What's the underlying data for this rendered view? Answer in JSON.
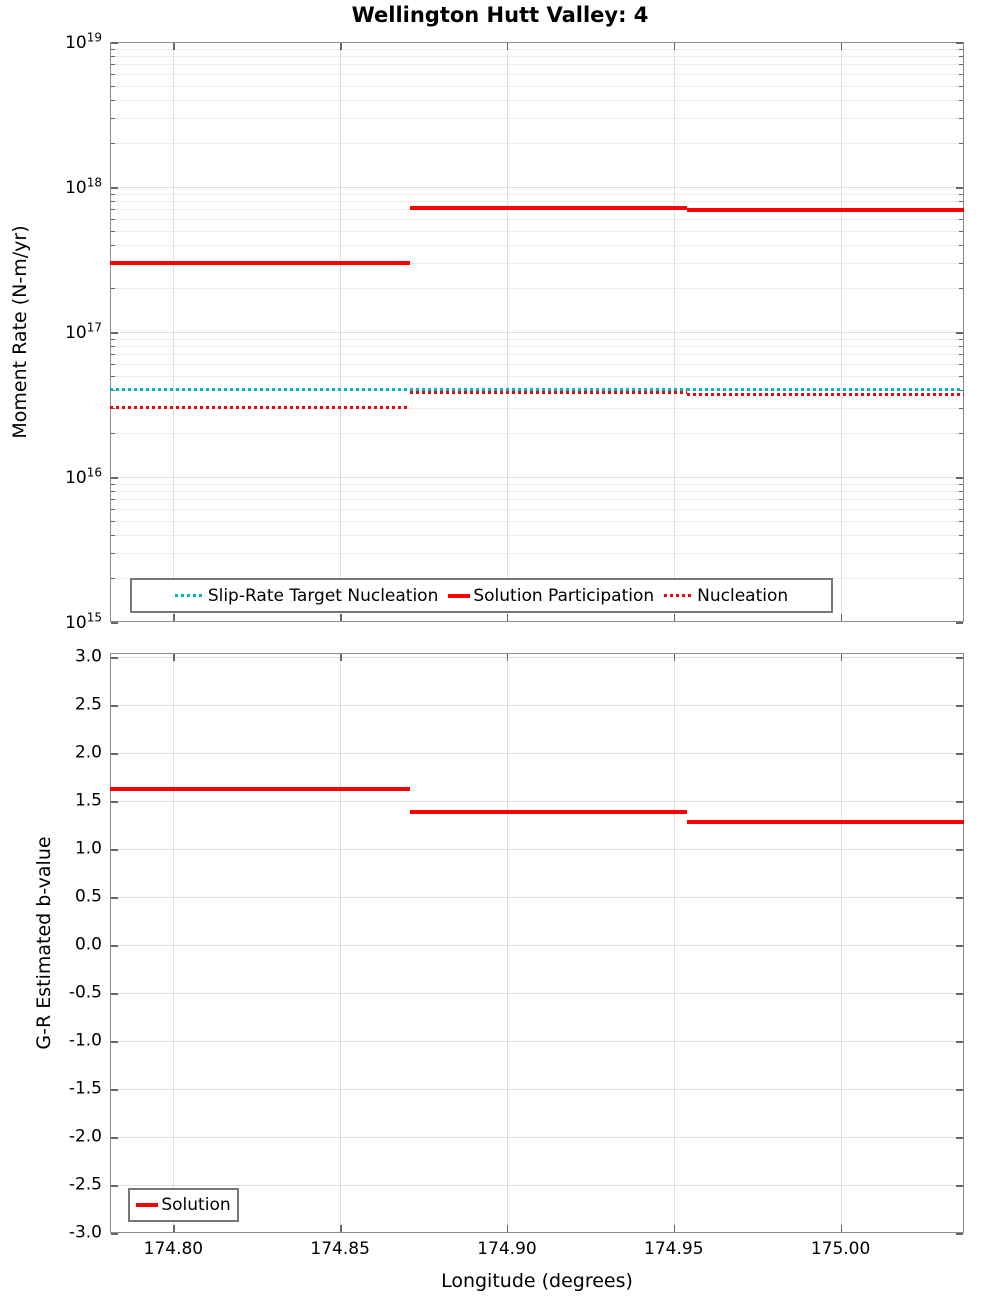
{
  "title": "Wellington Hutt Valley: 4",
  "colors": {
    "solution_red": "#ff0000",
    "target_teal": "#00b7c8",
    "grid_major": "#dfdfdf",
    "grid_minor": "#ececec",
    "spine_gray": "#8c8c8c"
  },
  "top_chart": {
    "ylabel": "Moment Rate (N-m/yr)",
    "legend_labels": [
      "Slip-Rate Target Nucleation",
      "Solution Participation",
      "Nucleation"
    ]
  },
  "bottom_chart": {
    "ylabel": "G-R Estimated b-value",
    "xlabel": "Longitude (degrees)",
    "legend_labels": [
      "Solution"
    ]
  },
  "chart_data": [
    {
      "type": "line",
      "subplot": "top",
      "title": "Wellington Hutt Valley: 4",
      "ylabel": "Moment Rate (N-m/yr)",
      "y_scale": "log",
      "ylim": [
        1000000000000000.0,
        1e+19
      ],
      "y_tick_exponents": [
        19,
        18,
        17,
        16,
        15
      ],
      "xlim": [
        174.781,
        175.037
      ],
      "x_ticks": [
        174.8,
        174.85,
        174.9,
        174.95,
        175.0
      ],
      "x_edges": [
        174.781,
        174.871,
        174.954,
        175.037
      ],
      "grid": true,
      "legend_position": "bottom-left",
      "series": [
        {
          "name": "Slip-Rate Target Nucleation",
          "color": "#00b7c8",
          "style": "dotted",
          "step_values": [
            4e+16,
            4e+16,
            4e+16
          ]
        },
        {
          "name": "Solution Participation",
          "color": "#ff0000",
          "style": "solid",
          "step_values": [
            3e+17,
            7.2e+17,
            6.9e+17
          ]
        },
        {
          "name": "Nucleation",
          "color": "#ff0000",
          "style": "dotted",
          "step_values": [
            3e+16,
            3.8e+16,
            3.7e+16
          ]
        }
      ]
    },
    {
      "type": "line",
      "subplot": "bottom",
      "ylabel": "G-R Estimated b-value",
      "xlabel": "Longitude (degrees)",
      "y_scale": "linear",
      "ylim": [
        -3.0,
        3.0
      ],
      "y_tick_step": 0.5,
      "xlim": [
        174.781,
        175.037
      ],
      "x_ticks": [
        174.8,
        174.85,
        174.9,
        174.95,
        175.0
      ],
      "x_edges": [
        174.781,
        174.871,
        174.954,
        175.037
      ],
      "grid": true,
      "legend_position": "bottom-left",
      "series": [
        {
          "name": "Solution",
          "color": "#ff0000",
          "style": "solid",
          "step_values": [
            1.62,
            1.39,
            1.28
          ]
        }
      ]
    }
  ]
}
